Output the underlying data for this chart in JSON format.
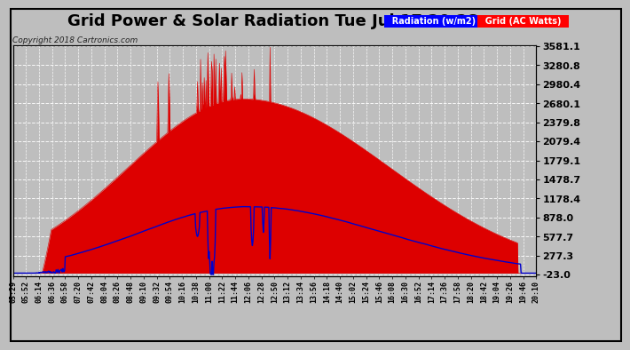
{
  "title": "Grid Power & Solar Radiation Tue Jul 17 20:28",
  "copyright": "Copyright 2018 Cartronics.com",
  "legend_radiation": "Radiation (w/m2)",
  "legend_grid": "Grid (AC Watts)",
  "ymin": -23.0,
  "ymax": 3581.1,
  "yticks": [
    -23.0,
    277.3,
    577.7,
    878.0,
    1178.4,
    1478.7,
    1779.1,
    2079.4,
    2379.8,
    2680.1,
    2980.4,
    3280.8,
    3581.1
  ],
  "bg_color": "#bebebe",
  "plot_bg_color": "#bebebe",
  "grid_fill_color": "#dd0000",
  "blue_line_color": "#0000cc",
  "title_fontsize": 13,
  "copyright_fontsize": 6.5,
  "xlabel_fontsize": 6,
  "ylabel_fontsize": 8,
  "xtick_labels": [
    "05:29",
    "05:52",
    "06:14",
    "06:36",
    "06:58",
    "07:20",
    "07:42",
    "08:04",
    "08:26",
    "08:48",
    "09:10",
    "09:32",
    "09:54",
    "10:16",
    "10:38",
    "11:00",
    "11:22",
    "11:44",
    "12:06",
    "12:28",
    "12:50",
    "13:12",
    "13:34",
    "13:56",
    "14:18",
    "14:40",
    "15:02",
    "15:24",
    "15:46",
    "16:08",
    "16:30",
    "16:52",
    "17:14",
    "17:36",
    "17:58",
    "18:20",
    "18:42",
    "19:04",
    "19:26",
    "19:46",
    "20:10"
  ]
}
